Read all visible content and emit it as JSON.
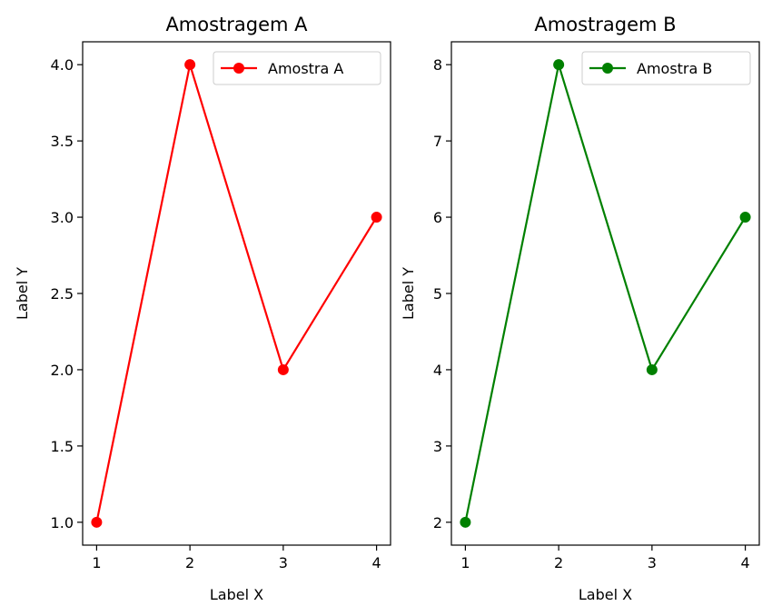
{
  "chart_data": [
    {
      "type": "line",
      "title": "Amostragem A",
      "xlabel": "Label X",
      "ylabel": "Label Y",
      "xlim": [
        0.85,
        4.15
      ],
      "ylim": [
        0.85,
        4.15
      ],
      "xticks": [
        1,
        2,
        3,
        4
      ],
      "xtick_labels": [
        "1",
        "2",
        "3",
        "4"
      ],
      "yticks": [
        1.0,
        1.5,
        2.0,
        2.5,
        3.0,
        3.5,
        4.0
      ],
      "ytick_labels": [
        "1.0",
        "1.5",
        "2.0",
        "2.5",
        "3.0",
        "3.5",
        "4.0"
      ],
      "grid": false,
      "legend_position": "top-right",
      "series": [
        {
          "name": "Amostra A",
          "color": "#ff0000",
          "marker": "circle",
          "x": [
            1,
            2,
            3,
            4
          ],
          "y": [
            1,
            4,
            2,
            3
          ]
        }
      ]
    },
    {
      "type": "line",
      "title": "Amostragem B",
      "xlabel": "Label X",
      "ylabel": "Label Y",
      "xlim": [
        0.85,
        4.15
      ],
      "ylim": [
        1.7,
        8.3
      ],
      "xticks": [
        1,
        2,
        3,
        4
      ],
      "xtick_labels": [
        "1",
        "2",
        "3",
        "4"
      ],
      "yticks": [
        2,
        3,
        4,
        5,
        6,
        7,
        8
      ],
      "ytick_labels": [
        "2",
        "3",
        "4",
        "5",
        "6",
        "7",
        "8"
      ],
      "grid": false,
      "legend_position": "top-right",
      "series": [
        {
          "name": "Amostra B",
          "color": "#008000",
          "marker": "circle",
          "x": [
            1,
            2,
            3,
            4
          ],
          "y": [
            2,
            8,
            4,
            6
          ]
        }
      ]
    }
  ]
}
